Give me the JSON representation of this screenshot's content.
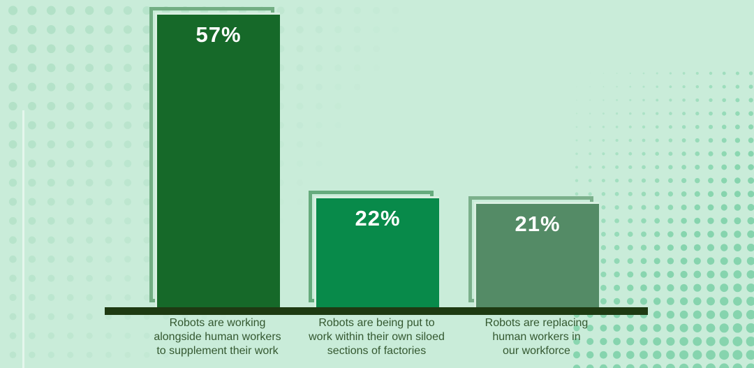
{
  "palette": {
    "background": "#c9ecd9",
    "left_dots": "#9fd8b8",
    "right_dots": "#7ed2a8",
    "baseline": "#1e3a12",
    "label_text": "#345830",
    "value_text": "#ffffff",
    "gap_light": "#d9efe1"
  },
  "chart_data": {
    "type": "bar",
    "orientation": "vertical",
    "title": "",
    "xlabel": "",
    "ylabel": "",
    "grid": false,
    "legend": false,
    "value_label_position": "inside-top",
    "categories": [
      "Robots are working alongside human workers to supplement their work",
      "Robots are being put to work within their own siloed sections of factories",
      "Robots are replacing human workers in our workforce"
    ],
    "values": [
      57,
      22,
      21
    ],
    "bars": [
      {
        "label": "Robots are working alongside human workers to supplement their work",
        "value": 57,
        "display": "57%",
        "fill": "#166929",
        "outline": "#72ae83",
        "label_lines": [
          "Robots are working",
          "alongside human workers",
          "to supplement their work"
        ]
      },
      {
        "label": "Robots are being put to work within their own siloed sections of factories",
        "value": 22,
        "display": "22%",
        "fill": "#088a4a",
        "outline": "#66ab7d",
        "label_lines": [
          "Robots are being put to",
          "work within their own siloed",
          "sections of factories"
        ]
      },
      {
        "label": "Robots are replacing human workers in our workforce",
        "value": 21,
        "display": "21%",
        "fill": "#548b66",
        "outline": "#7bb08b",
        "label_lines": [
          "Robots are replacing",
          "human workers in",
          "our workforce"
        ]
      }
    ]
  }
}
